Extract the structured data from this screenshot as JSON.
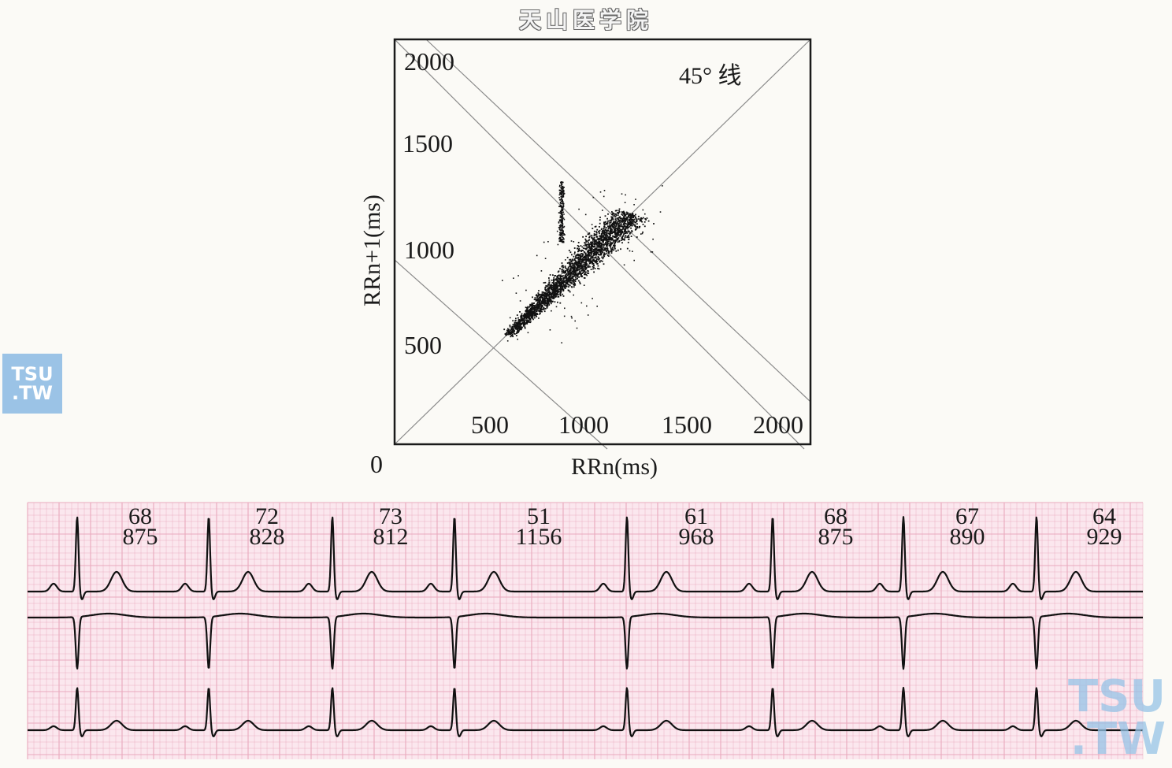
{
  "header": {
    "title": "天山医学院"
  },
  "watermark": {
    "line1": "TSU",
    "line2": ".TW",
    "color": "#9bc3e6"
  },
  "chart_data": [
    {
      "type": "scatter",
      "title": "",
      "xlabel": "RRn(ms)",
      "ylabel": "RRn+1(ms)",
      "xlim": [
        0,
        2000
      ],
      "ylim": [
        0,
        2000
      ],
      "origin_label": "0",
      "x_ticks": [
        "500",
        "1000",
        "1500",
        "2000"
      ],
      "y_ticks": [
        "500",
        "1000",
        "1500",
        "2000"
      ],
      "annotation": "45° 线",
      "reference_lines": [
        "identity (RRn+1 = RRn)",
        "perpendicular diagonals"
      ],
      "clusters": [
        {
          "name": "",
          "description": "main comet cluster along identity line",
          "x_range": [
            540,
            1140
          ],
          "y_range": [
            540,
            1140
          ]
        },
        {
          "name": "",
          "description": "vertical spur",
          "x": 800,
          "y_range": [
            1000,
            1300
          ]
        }
      ],
      "marker_color": "#111111"
    },
    {
      "type": "line",
      "title": "",
      "description": "ECG rhythm strip, 3 leads",
      "leads": 3,
      "grid_color": "#e9a9bd",
      "background": "#fbe7ee",
      "beat_labels": [
        {
          "hr": "68",
          "rr": "875"
        },
        {
          "hr": "72",
          "rr": "828"
        },
        {
          "hr": "73",
          "rr": "812"
        },
        {
          "hr": "51",
          "rr": "1156"
        },
        {
          "hr": "61",
          "rr": "968"
        },
        {
          "hr": "68",
          "rr": "875"
        },
        {
          "hr": "67",
          "rr": "890"
        },
        {
          "hr": "64",
          "rr": "929"
        }
      ]
    }
  ]
}
